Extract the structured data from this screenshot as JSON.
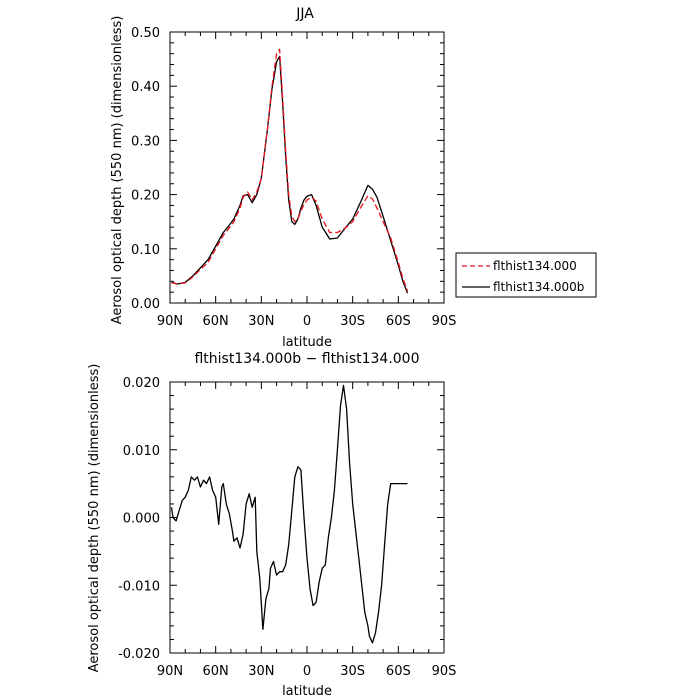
{
  "chart_data": [
    {
      "type": "line",
      "title": "JJA",
      "xlabel": "latitude",
      "ylabel": "Aerosol optical depth (550 nm) (dimensionless)",
      "xlim": [
        90,
        -90
      ],
      "ylim": [
        0.0,
        0.5
      ],
      "xticks": [
        90,
        60,
        30,
        0,
        -30,
        -60,
        -90
      ],
      "xtick_labels": [
        "90N",
        "60N",
        "30N",
        "0",
        "30S",
        "60S",
        "90S"
      ],
      "yticks": [
        0.0,
        0.1,
        0.2,
        0.3,
        0.4,
        0.5
      ],
      "ytick_labels": [
        "0.00",
        "0.10",
        "0.20",
        "0.30",
        "0.40",
        "0.50"
      ],
      "grid": false,
      "legend_position": "right",
      "series": [
        {
          "name": "flthist134.000",
          "color": "#e8141e",
          "dash": "dashed",
          "x": [
            89,
            85,
            80,
            75,
            70,
            65,
            60,
            55,
            52,
            48,
            44,
            42,
            39,
            36,
            33,
            30,
            26,
            23,
            20,
            18,
            16,
            14,
            12,
            10,
            8,
            6,
            4,
            2,
            0,
            -3,
            -6,
            -10,
            -15,
            -20,
            -25,
            -30,
            -35,
            -40,
            -43,
            -46,
            -50,
            -55,
            -60,
            -63,
            -66
          ],
          "values": [
            0.037,
            0.035,
            0.037,
            0.048,
            0.062,
            0.075,
            0.1,
            0.125,
            0.135,
            0.15,
            0.175,
            0.195,
            0.205,
            0.19,
            0.205,
            0.23,
            0.32,
            0.4,
            0.46,
            0.468,
            0.38,
            0.28,
            0.2,
            0.16,
            0.15,
            0.155,
            0.17,
            0.182,
            0.19,
            0.195,
            0.188,
            0.155,
            0.13,
            0.13,
            0.138,
            0.15,
            0.175,
            0.198,
            0.192,
            0.175,
            0.15,
            0.12,
            0.075,
            0.045,
            0.022
          ]
        },
        {
          "name": "flthist134.000b",
          "color": "#000000",
          "dash": "solid",
          "x": [
            89,
            85,
            80,
            75,
            70,
            65,
            60,
            55,
            52,
            48,
            44,
            42,
            39,
            36,
            33,
            30,
            26,
            23,
            20,
            18,
            16,
            14,
            12,
            10,
            8,
            6,
            4,
            2,
            0,
            -3,
            -6,
            -10,
            -15,
            -20,
            -25,
            -30,
            -35,
            -40,
            -43,
            -46,
            -50,
            -55,
            -60,
            -63,
            -66
          ],
          "values": [
            0.038,
            0.035,
            0.038,
            0.05,
            0.065,
            0.08,
            0.105,
            0.13,
            0.14,
            0.155,
            0.18,
            0.198,
            0.2,
            0.185,
            0.2,
            0.23,
            0.32,
            0.395,
            0.445,
            0.455,
            0.37,
            0.27,
            0.19,
            0.15,
            0.145,
            0.155,
            0.175,
            0.19,
            0.197,
            0.2,
            0.18,
            0.14,
            0.118,
            0.12,
            0.138,
            0.155,
            0.185,
            0.217,
            0.21,
            0.195,
            0.16,
            0.115,
            0.07,
            0.04,
            0.018
          ]
        }
      ]
    },
    {
      "type": "line",
      "title": "flthist134.000b − flthist134.000",
      "xlabel": "latitude",
      "ylabel": "Aerosol optical depth (550 nm) (dimensionless)",
      "xlim": [
        90,
        -90
      ],
      "ylim": [
        -0.02,
        0.02
      ],
      "xticks": [
        90,
        60,
        30,
        0,
        -30,
        -60,
        -90
      ],
      "xtick_labels": [
        "90N",
        "60N",
        "30N",
        "0",
        "30S",
        "60S",
        "90S"
      ],
      "yticks": [
        -0.02,
        -0.01,
        0.0,
        0.01,
        0.02
      ],
      "ytick_labels": [
        "-0.020",
        "-0.010",
        "0.000",
        "0.010",
        "0.020"
      ],
      "grid": false,
      "series": [
        {
          "color": "#000000",
          "x": [
            89,
            88,
            86,
            84,
            82,
            80,
            78,
            76,
            74,
            72,
            70,
            68,
            66,
            64,
            62,
            60,
            58,
            56,
            55,
            53,
            51,
            49,
            48,
            46,
            44,
            42,
            40,
            38,
            36,
            34,
            33,
            31,
            29,
            27,
            25,
            24,
            22,
            21,
            20,
            18,
            16,
            14,
            12,
            10,
            8,
            6,
            4,
            2,
            0,
            -2,
            -4,
            -6,
            -8,
            -10,
            -12,
            -14,
            -16,
            -18,
            -20,
            -22,
            -24,
            -26,
            -28,
            -30,
            -32,
            -34,
            -36,
            -38,
            -40,
            -41,
            -43,
            -45,
            -47,
            -49,
            -51,
            -53,
            -55,
            -57,
            -59,
            -61,
            -63,
            -65,
            -66
          ],
          "values": [
            0.0015,
            0.0,
            -0.0005,
            0.001,
            0.0025,
            0.003,
            0.004,
            0.006,
            0.0055,
            0.006,
            0.0045,
            0.0055,
            0.005,
            0.006,
            0.004,
            0.003,
            -0.001,
            0.0045,
            0.005,
            0.002,
            0.0005,
            -0.002,
            -0.0035,
            -0.003,
            -0.0045,
            -0.0025,
            0.002,
            0.0035,
            0.0015,
            0.003,
            -0.005,
            -0.009,
            -0.0165,
            -0.012,
            -0.0105,
            -0.0075,
            -0.0065,
            -0.0075,
            -0.0085,
            -0.008,
            -0.008,
            -0.007,
            -0.004,
            0.001,
            0.006,
            0.0075,
            0.007,
            0.0,
            -0.006,
            -0.0105,
            -0.013,
            -0.0125,
            -0.0095,
            -0.0075,
            -0.007,
            -0.003,
            0.0,
            0.004,
            0.01,
            0.0165,
            0.0195,
            0.016,
            0.008,
            0.002,
            -0.002,
            -0.006,
            -0.01,
            -0.014,
            -0.016,
            -0.0175,
            -0.0185,
            -0.017,
            -0.014,
            -0.01,
            -0.004,
            0.002,
            0.005,
            0.005,
            0.005,
            0.005,
            0.005,
            0.005,
            0.005
          ]
        }
      ]
    }
  ]
}
